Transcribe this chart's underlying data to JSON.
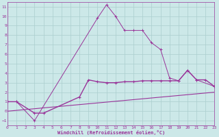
{
  "xlabel": "Windchill (Refroidissement éolien,°C)",
  "background_color": "#cce8e8",
  "grid_color": "#aacece",
  "line_color": "#993399",
  "xlim": [
    0,
    23
  ],
  "ylim": [
    -1.5,
    11.5
  ],
  "line1_x": [
    0,
    1,
    3,
    10,
    11,
    12,
    13,
    14,
    15,
    16,
    17,
    18,
    19,
    20,
    21,
    23
  ],
  "line1_y": [
    1.0,
    1.0,
    -1.0,
    9.8,
    11.2,
    10.0,
    8.5,
    8.5,
    8.5,
    7.2,
    6.5,
    3.5,
    3.2,
    4.3,
    3.3,
    2.6
  ],
  "line2_x": [
    0,
    1,
    3,
    4,
    8,
    9,
    10,
    11,
    12,
    13,
    14,
    15,
    16,
    17,
    18,
    19,
    20,
    21,
    22,
    23
  ],
  "line2_y": [
    1.0,
    1.0,
    -0.2,
    -0.2,
    1.5,
    3.3,
    3.1,
    3.0,
    3.0,
    3.1,
    3.1,
    3.2,
    3.2,
    3.2,
    3.2,
    3.2,
    4.3,
    3.3,
    3.3,
    2.6
  ],
  "line3_x": [
    0,
    23
  ],
  "line3_y": [
    0.0,
    2.0
  ],
  "yticks": [
    -1,
    0,
    1,
    2,
    3,
    4,
    5,
    6,
    7,
    8,
    9,
    10,
    11
  ],
  "xticks": [
    0,
    1,
    2,
    3,
    4,
    5,
    6,
    7,
    8,
    9,
    10,
    11,
    12,
    13,
    14,
    15,
    16,
    17,
    18,
    19,
    20,
    21,
    22,
    23
  ]
}
